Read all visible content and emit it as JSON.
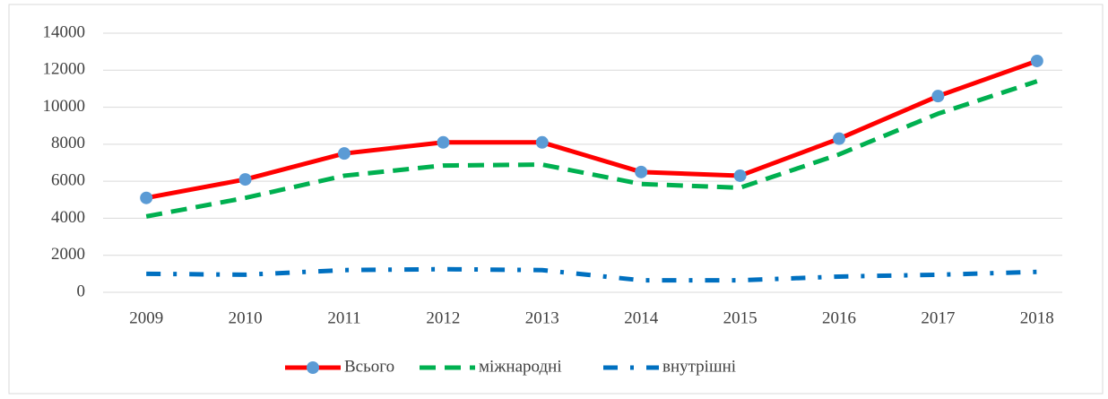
{
  "chart_data": {
    "type": "line",
    "categories": [
      "2009",
      "2010",
      "2011",
      "2012",
      "2013",
      "2014",
      "2015",
      "2016",
      "2017",
      "2018"
    ],
    "series": [
      {
        "name": "Всього",
        "color": "#ff0000",
        "style": "solid",
        "marker": true,
        "marker_color": "#5b9bd5",
        "values": [
          5100,
          6100,
          7500,
          8100,
          8100,
          6500,
          6300,
          8300,
          10600,
          12500
        ]
      },
      {
        "name": "міжнародні",
        "color": "#00b050",
        "style": "dashed",
        "marker": false,
        "values": [
          4100,
          5100,
          6300,
          6850,
          6900,
          5850,
          5650,
          7450,
          9650,
          11400
        ]
      },
      {
        "name": "внутрішні",
        "color": "#0070c0",
        "style": "dashdot",
        "marker": false,
        "values": [
          1000,
          950,
          1200,
          1250,
          1200,
          650,
          650,
          850,
          950,
          1100
        ]
      }
    ],
    "ylim": [
      0,
      14000
    ],
    "yticks": [
      0,
      2000,
      4000,
      6000,
      8000,
      10000,
      12000,
      14000
    ],
    "grid": true,
    "legend": "bottom"
  }
}
